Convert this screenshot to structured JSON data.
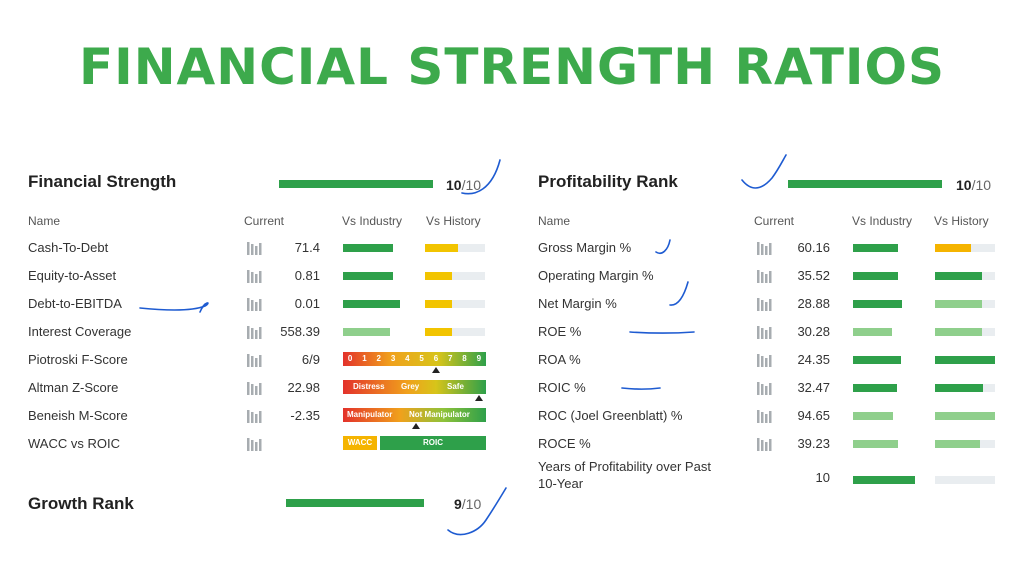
{
  "page_title": "FINANCIAL STRENGTH RATIOS",
  "columns": {
    "name": "Name",
    "current": "Current",
    "vs_industry": "Vs Industry",
    "vs_history": "Vs History"
  },
  "financial_strength": {
    "title": "Financial Strength",
    "score": "10",
    "out_of": "/10",
    "rank_fraction": 1.0,
    "rows": [
      {
        "name": "Cash-To-Debt",
        "value": "71.4",
        "industry": 0.8,
        "history": 0.55
      },
      {
        "name": "Equity-to-Asset",
        "value": "0.81",
        "industry": 0.8,
        "history": 0.45
      },
      {
        "name": "Debt-to-EBITDA",
        "value": "0.01",
        "industry": 0.92,
        "history": 0.45
      },
      {
        "name": "Interest Coverage",
        "value": "558.39",
        "industry": 0.75,
        "history": 0.45
      },
      {
        "name": "Piotroski F-Score",
        "value": "6/9",
        "fscore_labels": [
          "0",
          "1",
          "2",
          "3",
          "4",
          "5",
          "6",
          "7",
          "8",
          "9"
        ],
        "fscore_value": 6
      },
      {
        "name": "Altman Z-Score",
        "value": "22.98",
        "zones": [
          "Distress",
          "Grey",
          "Safe"
        ]
      },
      {
        "name": "Beneish M-Score",
        "value": "-2.35",
        "mzones": [
          "Manipulator",
          "Not Manipulator"
        ]
      },
      {
        "name": "WACC vs ROIC",
        "value": "",
        "wacc_label": "WACC",
        "roic_label": "ROIC"
      }
    ]
  },
  "growth_rank": {
    "title": "Growth Rank",
    "score": "9",
    "out_of": "/10",
    "rank_fraction": 0.9
  },
  "profitability": {
    "title": "Profitability Rank",
    "score": "10",
    "out_of": "/10",
    "rank_fraction": 1.0,
    "rows": [
      {
        "name": "Gross Margin %",
        "value": "60.16",
        "industry": 0.8,
        "history": 0.6
      },
      {
        "name": "Operating Margin %",
        "value": "35.52",
        "industry": 0.8,
        "history": 0.78
      },
      {
        "name": "Net Margin %",
        "value": "28.88",
        "industry": 0.88,
        "history": 0.78
      },
      {
        "name": "ROE %",
        "value": "30.28",
        "industry": 0.7,
        "history": 0.78
      },
      {
        "name": "ROA %",
        "value": "24.35",
        "industry": 0.85,
        "history": 1.0
      },
      {
        "name": "ROIC %",
        "value": "32.47",
        "industry": 0.78,
        "history": 0.8
      },
      {
        "name": "ROC (Joel Greenblatt) %",
        "value": "94.65",
        "industry": 0.72,
        "history": 1.0
      },
      {
        "name": "ROCE %",
        "value": "39.23",
        "industry": 0.8,
        "history": 0.75
      },
      {
        "name": "Years of Profitability over Past 10-Year",
        "value": "10",
        "industry": 1.0,
        "history": 0
      }
    ]
  },
  "colors": {
    "title_green": "#3daa4c",
    "bar_green": "#2ea04a",
    "light_green": "#8fcf8c",
    "yellow": "#f2c400",
    "ink_blue": "#1e5bd1"
  }
}
